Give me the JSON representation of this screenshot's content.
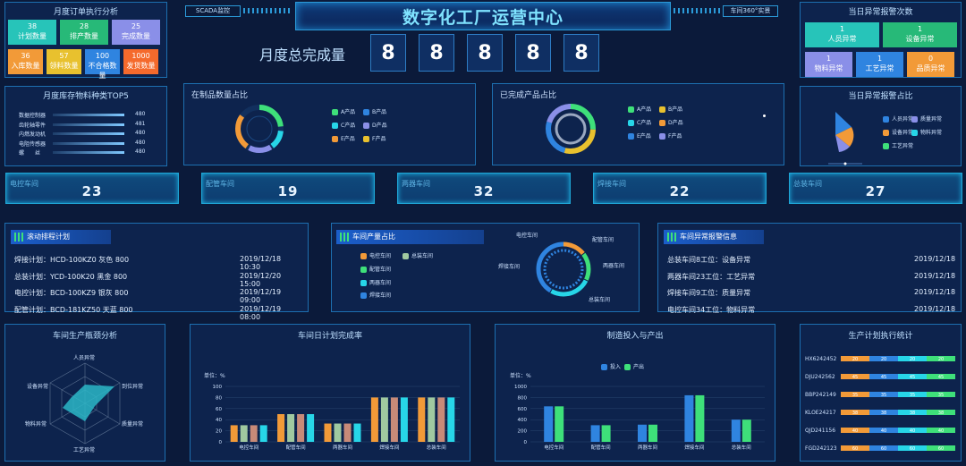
{
  "header": {
    "title": "数字化工厂运营中心",
    "left_tag": "SCADA监控",
    "right_tag": "车间360°实景"
  },
  "monthly": {
    "label": "月度总完成量",
    "digits": [
      "8",
      "8",
      "8",
      "8",
      "8"
    ]
  },
  "order_panel": {
    "title": "月度订单执行分析",
    "tiles": [
      {
        "num": "38",
        "label": "计划数量",
        "color": "#27c4b9"
      },
      {
        "num": "28",
        "label": "排产数量",
        "color": "#27b978"
      },
      {
        "num": "25",
        "label": "完成数量",
        "color": "#8a8fe8"
      },
      {
        "num": "36",
        "label": "入库数量",
        "color": "#f29a38"
      },
      {
        "num": "57",
        "label": "领料数量",
        "color": "#e8c12e"
      },
      {
        "num": "100",
        "label": "不合格数量",
        "color": "#2f84e0"
      },
      {
        "num": "1000",
        "label": "发货数量",
        "color": "#f56a2c"
      }
    ]
  },
  "material_panel": {
    "title": "月度库存物料种类TOP5",
    "items": [
      {
        "label": "数据控制器",
        "value": "480"
      },
      {
        "label": "齿轮轴零件",
        "value": "481"
      },
      {
        "label": "内燃发动机",
        "value": "480"
      },
      {
        "label": "电阻传感器",
        "value": "480"
      },
      {
        "label": "螺　　丝",
        "value": "480"
      }
    ]
  },
  "wip_panel": {
    "title": "在制品数量占比",
    "legend": [
      "A产品",
      "B产品",
      "C产品",
      "D产品",
      "E产品",
      "F产品"
    ],
    "colors": [
      "#3ee07a",
      "#2f84e0",
      "#27d6e8",
      "#8a8fe8",
      "#f29a38",
      "#e8c12e"
    ]
  },
  "done_panel": {
    "title": "已完成产品占比",
    "legend": [
      "A产品",
      "B产品",
      "C产品",
      "D产品",
      "E产品",
      "F产品"
    ],
    "colors": [
      "#3ee07a",
      "#e8c12e",
      "#27d6e8",
      "#f29a38",
      "#2f84e0",
      "#8a8fe8"
    ]
  },
  "alarm_count": {
    "title": "当日异常报警次数",
    "tiles": [
      {
        "num": "1",
        "label": "人员异常",
        "color": "#27c4b9"
      },
      {
        "num": "1",
        "label": "设备异常",
        "color": "#27b978"
      },
      {
        "num": "1",
        "label": "物料异常",
        "color": "#8a8fe8"
      },
      {
        "num": "1",
        "label": "工艺异常",
        "color": "#2f84e0"
      },
      {
        "num": "0",
        "label": "品质异常",
        "color": "#f29a38"
      }
    ]
  },
  "alarm_ratio": {
    "title": "当日异常报警占比",
    "legend": [
      "人员异常",
      "质量异常",
      "设备异常",
      "物料异常",
      "工艺异常"
    ],
    "colors": [
      "#2f84e0",
      "#8a8fe8",
      "#f29a38",
      "#27d6e8",
      "#3ee07a"
    ]
  },
  "workshops": [
    {
      "name": "电控车间",
      "value": "23"
    },
    {
      "name": "配管车间",
      "value": "19"
    },
    {
      "name": "两器车间",
      "value": "32"
    },
    {
      "name": "焊接车间",
      "value": "22"
    },
    {
      "name": "总装车间",
      "value": "27"
    }
  ],
  "schedule": {
    "title": "滚动排程计划",
    "rows": [
      {
        "text": "焊接计划：HCD-100KZ0 灰色 800",
        "time": "2019/12/18 10:30"
      },
      {
        "text": "总装计划：YCD-100K20 黑金 800",
        "time": "2019/12/20 15:00"
      },
      {
        "text": "电控计划：BCD-100KZ9 银灰 800",
        "time": "2019/12/19 09:00"
      },
      {
        "text": "配管计划：BCD-181KZ50 天蓝 800",
        "time": "2019/12/19 08:00"
      }
    ]
  },
  "output_share": {
    "title": "车间产量占比",
    "legend": [
      "电控车间",
      "总装车间",
      "配管车间",
      "两器车间",
      "焊接车间"
    ],
    "colors": [
      "#f29a38",
      "#a0c9a0",
      "#3ee07a",
      "#27d6e8",
      "#2f84e0"
    ],
    "ring_labels": [
      "电控车间",
      "配管车间",
      "两器车间",
      "焊接车间",
      "总装车间"
    ]
  },
  "alerts": {
    "title": "车间异常报警信息",
    "rows": [
      {
        "text": "总装车间8工位：设备异常",
        "date": "2019/12/18"
      },
      {
        "text": "两器车间23工位：工艺异常",
        "date": "2019/12/18"
      },
      {
        "text": "焊接车间9工位：质量异常",
        "date": "2019/12/18"
      },
      {
        "text": "电控车间34工位：物料异常",
        "date": "2019/12/18"
      }
    ]
  },
  "bottleneck": {
    "title": "车间生产瓶颈分析",
    "axes": [
      "人员异常",
      "到位异常",
      "质量异常",
      "工艺异常",
      "物料异常",
      "设备异常"
    ]
  },
  "chart_data": [
    {
      "type": "bar",
      "title": "车间日计划完成率",
      "ylabel": "单位：%",
      "ylim": [
        0,
        100
      ],
      "yticks": [
        0,
        20,
        40,
        60,
        80,
        100
      ],
      "categories": [
        "电控车间",
        "配管车间",
        "两器车间",
        "焊接车间",
        "总装车间"
      ],
      "series": [
        {
          "values": [
            30,
            50,
            33,
            80,
            80
          ]
        },
        {
          "values": [
            30,
            50,
            33,
            80,
            80
          ]
        },
        {
          "values": [
            30,
            50,
            33,
            80,
            80
          ]
        },
        {
          "values": [
            30,
            50,
            33,
            80,
            80
          ]
        }
      ]
    },
    {
      "type": "bar",
      "title": "制造投入与产出",
      "ylabel": "单位：%",
      "ylim": [
        0,
        1000
      ],
      "yticks": [
        0,
        200,
        400,
        600,
        800,
        1000
      ],
      "categories": [
        "电控车间",
        "配管车间",
        "两器车间",
        "焊接车间",
        "总装车间"
      ],
      "series": [
        {
          "name": "投入",
          "values": [
            640,
            300,
            310,
            840,
            400
          ]
        },
        {
          "name": "产出",
          "values": [
            640,
            300,
            310,
            840,
            400
          ]
        }
      ]
    },
    {
      "type": "bar",
      "title": "生产计划执行统计",
      "categories": [
        "HX6242452",
        "DJU242562",
        "BBP242149",
        "KLOE24217",
        "QJD241156",
        "FGD242123"
      ],
      "segments": [
        [
          20,
          20,
          20,
          20
        ],
        [
          45,
          45,
          45,
          45
        ],
        [
          35,
          35,
          35,
          35
        ],
        [
          38,
          38,
          38,
          38
        ],
        [
          40,
          40,
          40,
          40
        ],
        [
          60,
          60,
          60,
          60
        ]
      ]
    }
  ]
}
